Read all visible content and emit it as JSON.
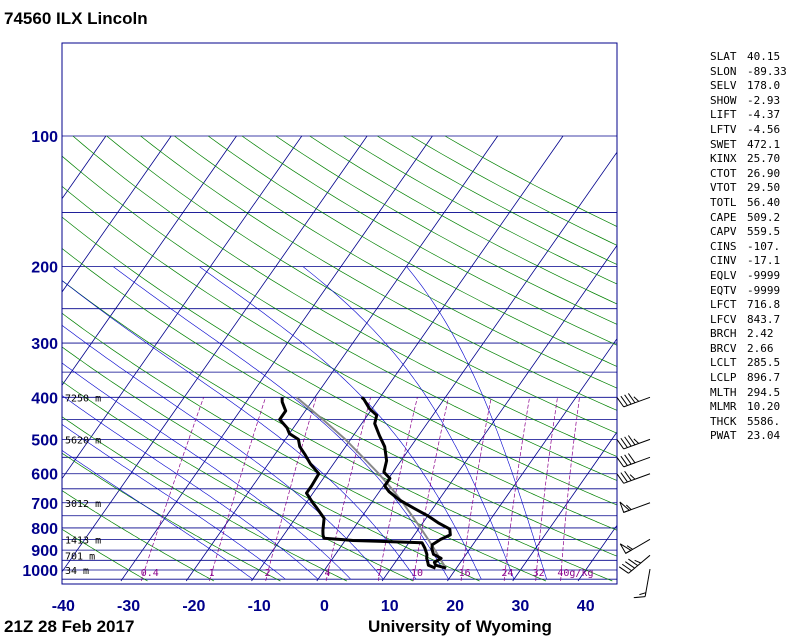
{
  "title": "74560 ILX Lincoln",
  "footer": {
    "time": "21Z 28 Feb 2017",
    "source": "University of Wyoming"
  },
  "chart_data": {
    "type": "skew-t",
    "pressure_ticks": [
      100,
      200,
      300,
      400,
      500,
      600,
      700,
      800,
      900,
      1000
    ],
    "temperature_ticks": [
      -40,
      -30,
      -20,
      -10,
      0,
      10,
      20,
      30,
      40
    ],
    "xlim": [
      -40,
      45
    ],
    "ylim_hpa": [
      1050,
      100
    ],
    "log_pressure_axis": true,
    "height_labels": [
      {
        "p": 400,
        "text": "7250 m"
      },
      {
        "p": 500,
        "text": "5620 m"
      },
      {
        "p": 700,
        "text": "3012 m"
      },
      {
        "p": 850,
        "text": "1413 m"
      },
      {
        "p": 925,
        "text": "701 m"
      },
      {
        "p": 1000,
        "text": "34 m"
      }
    ],
    "mixing_ratio_labels": [
      "0.4",
      "1",
      "2",
      "4",
      "7",
      "10",
      "16",
      "24",
      "32",
      "40g/kg"
    ],
    "temperature_profile": [
      {
        "p": 990,
        "t": 18.4
      },
      {
        "p": 975,
        "t": 16.5
      },
      {
        "p": 960,
        "t": 16.0
      },
      {
        "p": 940,
        "t": 16.6
      },
      {
        "p": 920,
        "t": 15.0
      },
      {
        "p": 895,
        "t": 14.2
      },
      {
        "p": 875,
        "t": 13.8
      },
      {
        "p": 850,
        "t": 14.5
      },
      {
        "p": 830,
        "t": 15.5
      },
      {
        "p": 805,
        "t": 14.8
      },
      {
        "p": 780,
        "t": 12.5
      },
      {
        "p": 750,
        "t": 10.0
      },
      {
        "p": 720,
        "t": 7.0
      },
      {
        "p": 690,
        "t": 4.0
      },
      {
        "p": 660,
        "t": 1.5
      },
      {
        "p": 640,
        "t": 0.2
      },
      {
        "p": 615,
        "t": 0.2
      },
      {
        "p": 595,
        "t": -1.4
      },
      {
        "p": 560,
        "t": -2.2
      },
      {
        "p": 520,
        "t": -4.0
      },
      {
        "p": 490,
        "t": -6.0
      },
      {
        "p": 460,
        "t": -8.0
      },
      {
        "p": 440,
        "t": -8.6
      },
      {
        "p": 425,
        "t": -10.4
      },
      {
        "p": 405,
        "t": -12.2
      },
      {
        "p": 400,
        "t": -12.8
      }
    ],
    "dewpoint_profile": [
      {
        "p": 990,
        "t": 16.8
      },
      {
        "p": 975,
        "t": 15.4
      },
      {
        "p": 960,
        "t": 15.0
      },
      {
        "p": 940,
        "t": 14.4
      },
      {
        "p": 920,
        "t": 14.0
      },
      {
        "p": 890,
        "t": 13.0
      },
      {
        "p": 865,
        "t": 12.0
      },
      {
        "p": 855,
        "t": 1.2
      },
      {
        "p": 850,
        "t": -1.0
      },
      {
        "p": 845,
        "t": -3.5
      },
      {
        "p": 830,
        "t": -4.0
      },
      {
        "p": 810,
        "t": -4.5
      },
      {
        "p": 760,
        "t": -5.6
      },
      {
        "p": 720,
        "t": -7.8
      },
      {
        "p": 700,
        "t": -9.0
      },
      {
        "p": 665,
        "t": -11.0
      },
      {
        "p": 640,
        "t": -11.0
      },
      {
        "p": 600,
        "t": -11.2
      },
      {
        "p": 570,
        "t": -13.5
      },
      {
        "p": 540,
        "t": -15.5
      },
      {
        "p": 520,
        "t": -17.0
      },
      {
        "p": 500,
        "t": -18.0
      },
      {
        "p": 485,
        "t": -20.0
      },
      {
        "p": 470,
        "t": -21.0
      },
      {
        "p": 450,
        "t": -23.0
      },
      {
        "p": 430,
        "t": -23.0
      },
      {
        "p": 410,
        "t": -24.5
      },
      {
        "p": 400,
        "t": -25.0
      }
    ],
    "parcel_profile": [
      {
        "p": 990,
        "t": 18.4
      },
      {
        "p": 950,
        "t": 16.8
      },
      {
        "p": 930,
        "t": 16.0
      },
      {
        "p": 900,
        "t": 14.8
      },
      {
        "p": 850,
        "t": 12.6
      },
      {
        "p": 800,
        "t": 10.2
      },
      {
        "p": 750,
        "t": 7.6
      },
      {
        "p": 700,
        "t": 4.8
      },
      {
        "p": 650,
        "t": 1.6
      },
      {
        "p": 600,
        "t": -2.0
      },
      {
        "p": 550,
        "t": -6.2
      },
      {
        "p": 500,
        "t": -10.8
      },
      {
        "p": 450,
        "t": -16.4
      },
      {
        "p": 400,
        "t": -22.8
      }
    ],
    "wind_barbs": [
      {
        "p": 995,
        "dir": 190,
        "speed_kt": 15
      },
      {
        "p": 925,
        "dir": 230,
        "speed_kt": 45
      },
      {
        "p": 850,
        "dir": 240,
        "speed_kt": 55
      },
      {
        "p": 700,
        "dir": 250,
        "speed_kt": 55
      },
      {
        "p": 600,
        "dir": 250,
        "speed_kt": 35
      },
      {
        "p": 550,
        "dir": 250,
        "speed_kt": 40
      },
      {
        "p": 500,
        "dir": 250,
        "speed_kt": 45
      },
      {
        "p": 400,
        "dir": 250,
        "speed_kt": 45
      }
    ],
    "colors": {
      "isobar": "#00008b",
      "isotherm": "#00008b",
      "dry_adiabat": "#008000",
      "moist_adiabat": "#0000cd",
      "mixing_ratio": "#8b008b",
      "sounding": "#000000",
      "parcel": "#888888"
    }
  },
  "indices": [
    {
      "name": "SLAT",
      "value": "40.15"
    },
    {
      "name": "SLON",
      "value": "-89.33"
    },
    {
      "name": "SELV",
      "value": "178.0"
    },
    {
      "name": "SHOW",
      "value": "-2.93"
    },
    {
      "name": "LIFT",
      "value": "-4.37"
    },
    {
      "name": "LFTV",
      "value": "-4.56"
    },
    {
      "name": "SWET",
      "value": "472.1"
    },
    {
      "name": "KINX",
      "value": "25.70"
    },
    {
      "name": "CTOT",
      "value": "26.90"
    },
    {
      "name": "VTOT",
      "value": "29.50"
    },
    {
      "name": "TOTL",
      "value": "56.40"
    },
    {
      "name": "CAPE",
      "value": "509.2"
    },
    {
      "name": "CAPV",
      "value": "559.5"
    },
    {
      "name": "CINS",
      "value": "-107."
    },
    {
      "name": "CINV",
      "value": "-17.1"
    },
    {
      "name": "EQLV",
      "value": "-9999"
    },
    {
      "name": "EQTV",
      "value": "-9999"
    },
    {
      "name": "LFCT",
      "value": "716.8"
    },
    {
      "name": "LFCV",
      "value": "843.7"
    },
    {
      "name": "BRCH",
      "value": "2.42"
    },
    {
      "name": "BRCV",
      "value": "2.66"
    },
    {
      "name": "LCLT",
      "value": "285.5"
    },
    {
      "name": "LCLP",
      "value": "896.7"
    },
    {
      "name": "MLTH",
      "value": "294.5"
    },
    {
      "name": "MLMR",
      "value": "10.20"
    },
    {
      "name": "THCK",
      "value": "5586."
    },
    {
      "name": "PWAT",
      "value": "23.04"
    }
  ]
}
